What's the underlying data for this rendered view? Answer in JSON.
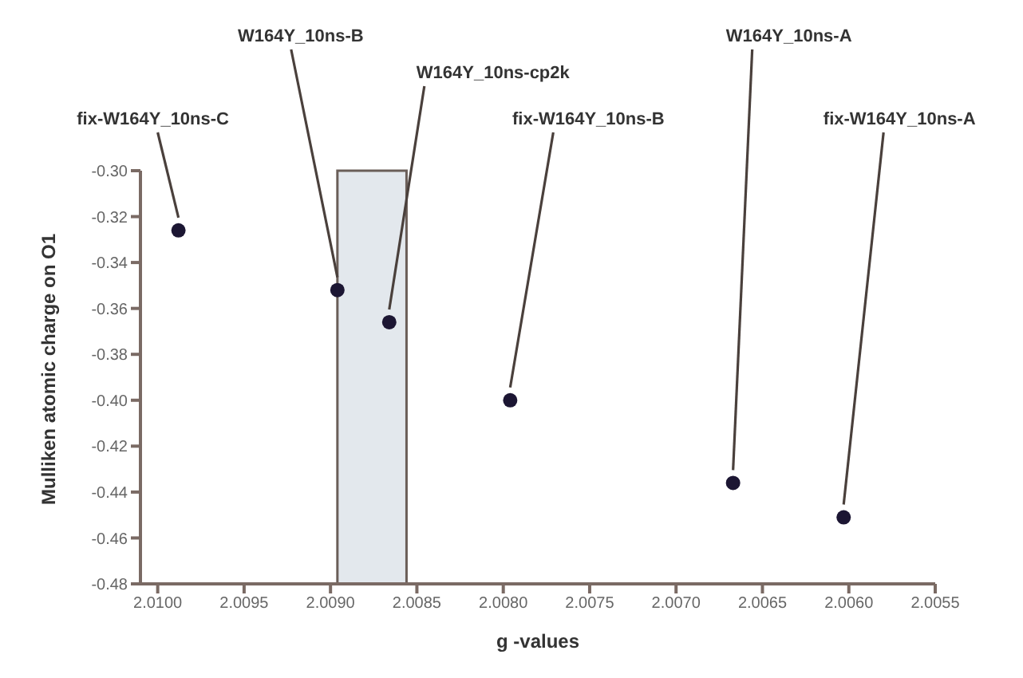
{
  "chart_data": {
    "type": "scatter",
    "xlabel": "g -values",
    "ylabel": "Mulliken atomic charge on O1",
    "x": [
      2.00988,
      2.00896,
      2.00866,
      2.00796,
      2.00667,
      2.00603
    ],
    "series": [
      {
        "color": "#1c1633",
        "values": [
          -0.326,
          -0.352,
          -0.366,
          -0.4,
          -0.436,
          -0.451
        ]
      }
    ],
    "annotations": [
      {
        "text": "fix-W164Y_10ns-C",
        "x": 2.00988,
        "y": -0.326
      },
      {
        "text": "W164Y_10ns-B",
        "x": 2.00896,
        "y": -0.352
      },
      {
        "text": "W164Y_10ns-cp2k",
        "x": 2.00866,
        "y": -0.366
      },
      {
        "text": "fix-W164Y_10ns-B",
        "x": 2.00796,
        "y": -0.4
      },
      {
        "text": "W164Y_10ns-A",
        "x": 2.00667,
        "y": -0.436
      },
      {
        "text": "fix-W164Y_10ns-A",
        "x": 2.00603,
        "y": -0.451
      }
    ],
    "bands": [
      {
        "axis": "x",
        "from": 2.00896,
        "to": 2.00856,
        "color": "#e3e8ed"
      }
    ],
    "xlim": [
      2.0101,
      2.0055
    ],
    "xticks": [
      {
        "value": 2.01,
        "label": "2.0100"
      },
      2.0095,
      {
        "value": 2.009,
        "label": "2.0090"
      },
      2.0085,
      {
        "value": 2.008,
        "label": "2.0080"
      },
      2.0075,
      {
        "value": 2.007,
        "label": "2.0070"
      },
      2.0065,
      {
        "value": 2.006,
        "label": "2.0060"
      },
      2.0055
    ],
    "ylim": [
      -0.48,
      -0.3
    ],
    "yticks": [
      {
        "value": -0.3,
        "label": "-0.30"
      },
      -0.32,
      -0.34,
      -0.36,
      -0.38,
      {
        "value": -0.4,
        "label": "-0.40"
      },
      -0.42,
      -0.44,
      -0.46,
      -0.48
    ],
    "grid": false,
    "legend": false,
    "marker": "circle"
  }
}
